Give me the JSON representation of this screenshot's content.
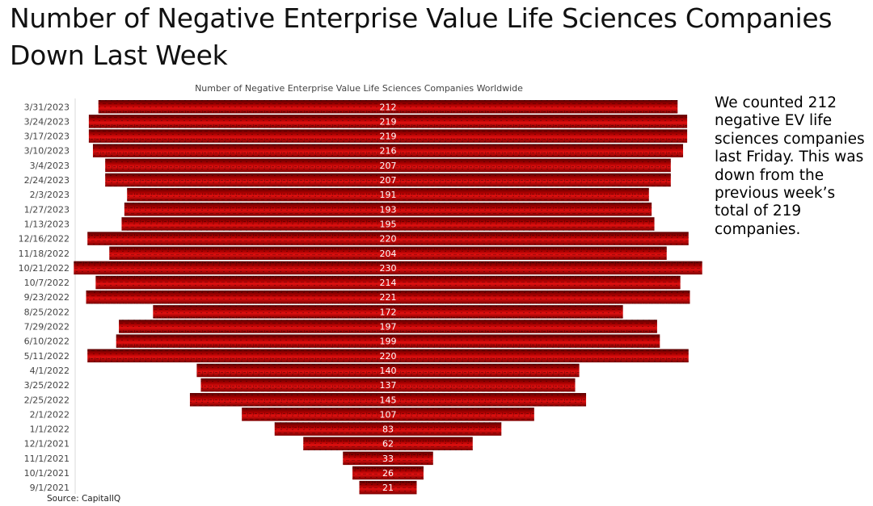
{
  "headline": "Number of Negative Enterprise Value Life Sciences Companies Down Last Week",
  "commentary": "We counted 212 negative EV life sciences companies last Friday. This was down from the previous week’s total of 219 companies.",
  "source": "Source: CapitalIQ",
  "colors": {
    "bar_center": "#e01010",
    "bar_edge": "#5a0000",
    "bar_mid": "#a80000"
  },
  "chart_data": {
    "type": "bar",
    "orientation": "horizontal",
    "style": "centered funnel",
    "title": "Number of Negative Enterprise Value Life Sciences Companies Worldwide",
    "xlabel": "",
    "ylabel": "",
    "grid": false,
    "legend": "none",
    "categories": [
      "3/31/2023",
      "3/24/2023",
      "3/17/2023",
      "3/10/2023",
      "3/4/2023",
      "2/24/2023",
      "2/3/2023",
      "1/27/2023",
      "1/13/2023",
      "12/16/2022",
      "11/18/2022",
      "10/21/2022",
      "10/7/2022",
      "9/23/2022",
      "8/25/2022",
      "7/29/2022",
      "6/10/2022",
      "5/11/2022",
      "4/1/2022",
      "3/25/2022",
      "2/25/2022",
      "2/1/2022",
      "1/1/2022",
      "12/1/2021",
      "11/1/2021",
      "10/1/2021",
      "9/1/2021"
    ],
    "values": [
      212,
      219,
      219,
      216,
      207,
      207,
      191,
      193,
      195,
      220,
      204,
      230,
      214,
      221,
      172,
      197,
      199,
      220,
      140,
      137,
      145,
      107,
      83,
      62,
      33,
      26,
      21
    ]
  }
}
